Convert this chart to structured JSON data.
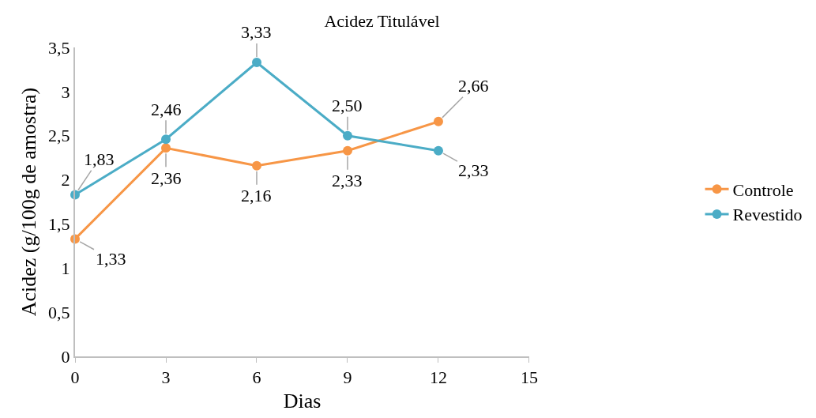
{
  "chart_data": {
    "type": "line",
    "title": "Acidez Titulável",
    "xlabel": "Dias",
    "ylabel": "Acidez (g/100g de amostra)",
    "x": [
      0,
      3,
      6,
      9,
      12
    ],
    "series": [
      {
        "name": "Controle",
        "color": "#f79646",
        "values": [
          1.33,
          2.36,
          2.16,
          2.33,
          2.66
        ],
        "value_labels": [
          "1,33",
          "2,36",
          "2,16",
          "2,33",
          "2,66"
        ]
      },
      {
        "name": "Revestido",
        "color": "#4bacc6",
        "values": [
          1.83,
          2.46,
          3.33,
          2.5,
          2.33
        ],
        "value_labels": [
          "1,83",
          "2,46",
          "3,33",
          "2,50",
          "2,33"
        ]
      }
    ],
    "xlim": [
      0,
      15
    ],
    "xticks": [
      0,
      3,
      6,
      9,
      12,
      15
    ],
    "ylim": [
      0,
      3.5
    ],
    "yticks": [
      0,
      {
        "value": 0.5,
        "label": "0,5"
      },
      1,
      {
        "value": 1.5,
        "label": "1,5"
      },
      2,
      {
        "value": 2.5,
        "label": "2,5"
      },
      3,
      {
        "value": 3.5,
        "label": "3,5"
      }
    ],
    "legend": "right",
    "marker": "circle",
    "line_style": "solid"
  }
}
